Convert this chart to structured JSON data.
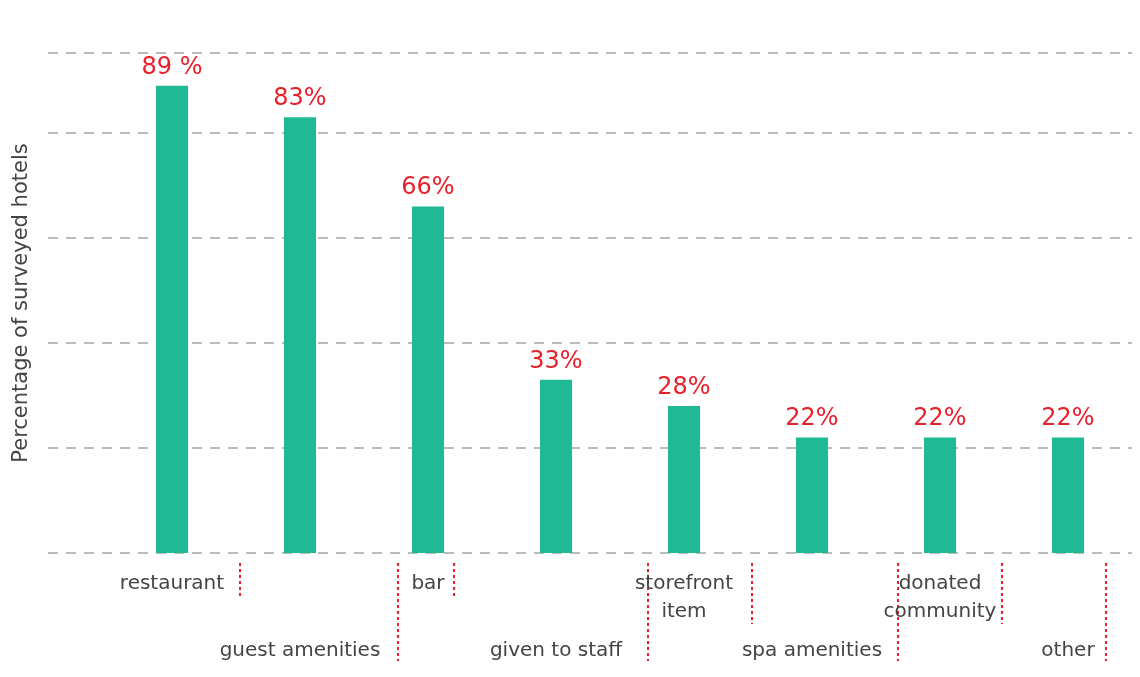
{
  "chart_data": {
    "type": "bar",
    "ylabel": "Percentage of surveyed hotels",
    "categories": [
      "restaurant",
      "guest amenities",
      "bar",
      "given to staff",
      "storefront item",
      "spa amenities",
      "donated community",
      "other"
    ],
    "values": [
      89,
      83,
      66,
      33,
      28,
      22,
      22,
      22
    ],
    "value_labels": [
      "89 %",
      "83%",
      "66%",
      "33%",
      "28%",
      "22%",
      "22%",
      "22%"
    ],
    "color": "#20b995",
    "grid": "y"
  }
}
